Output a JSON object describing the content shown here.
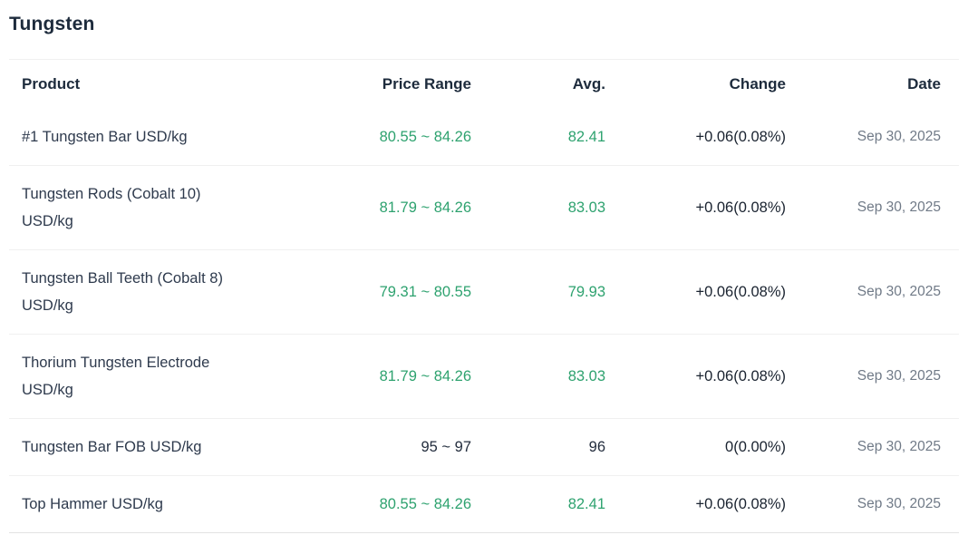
{
  "page": {
    "title": "Tungsten"
  },
  "colors": {
    "title": "#1d2b3c",
    "header": "#1d2b3c",
    "product": "#2e3a4d",
    "change": "#1a2330",
    "date": "#707a87",
    "green": "#2ea26f",
    "dark_value": "#242e3e",
    "divider": "#f0f0f0",
    "divider_bottom": "#e2e2e2",
    "background": "#ffffff"
  },
  "table": {
    "columns": [
      {
        "key": "product",
        "label": "Product",
        "align": "left"
      },
      {
        "key": "price_range",
        "label": "Price Range",
        "align": "right"
      },
      {
        "key": "avg",
        "label": "Avg.",
        "align": "right"
      },
      {
        "key": "change",
        "label": "Change",
        "align": "right"
      },
      {
        "key": "date",
        "label": "Date",
        "align": "right"
      }
    ],
    "rows": [
      {
        "product_lines": [
          "#1 Tungsten Bar USD/kg"
        ],
        "price_range": "80.55 ~ 84.26",
        "avg": "82.41",
        "change": "+0.06(0.08%)",
        "date": "Sep 30, 2025",
        "trend": "up"
      },
      {
        "product_lines": [
          "Tungsten Rods (Cobalt 10)",
          "USD/kg"
        ],
        "price_range": "81.79 ~ 84.26",
        "avg": "83.03",
        "change": "+0.06(0.08%)",
        "date": "Sep 30, 2025",
        "trend": "up"
      },
      {
        "product_lines": [
          "Tungsten Ball Teeth (Cobalt 8)",
          "USD/kg"
        ],
        "price_range": "79.31 ~ 80.55",
        "avg": "79.93",
        "change": "+0.06(0.08%)",
        "date": "Sep 30, 2025",
        "trend": "up"
      },
      {
        "product_lines": [
          "Thorium Tungsten Electrode",
          "USD/kg"
        ],
        "price_range": "81.79 ~ 84.26",
        "avg": "83.03",
        "change": "+0.06(0.08%)",
        "date": "Sep 30, 2025",
        "trend": "up"
      },
      {
        "product_lines": [
          "Tungsten Bar FOB USD/kg"
        ],
        "price_range": "95 ~ 97",
        "avg": "96",
        "change": "0(0.00%)",
        "date": "Sep 30, 2025",
        "trend": "flat"
      },
      {
        "product_lines": [
          "Top Hammer USD/kg"
        ],
        "price_range": "80.55 ~ 84.26",
        "avg": "82.41",
        "change": "+0.06(0.08%)",
        "date": "Sep 30, 2025",
        "trend": "up"
      }
    ]
  }
}
